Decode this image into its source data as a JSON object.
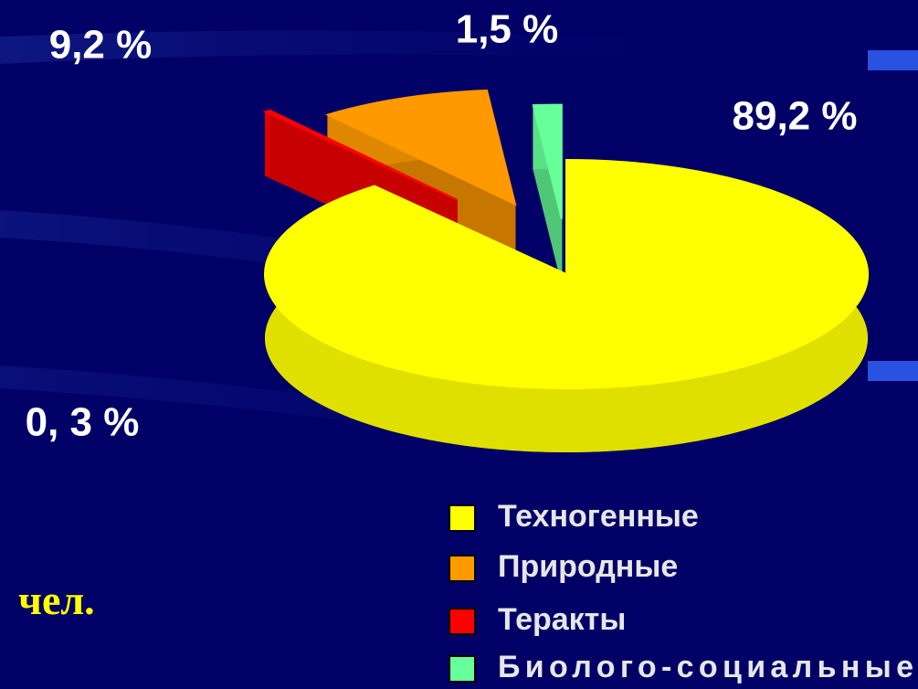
{
  "chart_data": {
    "type": "pie",
    "categories": [
      "Техногенные",
      "Природные",
      "Теракты",
      "Биолого-социальные"
    ],
    "values": [
      89.2,
      9.2,
      0.3,
      1.5
    ],
    "value_labels": [
      "89,2 %",
      "9,2 %",
      "0, 3 %",
      "1,5 %"
    ],
    "colors": [
      "#ffff00",
      "#ff9900",
      "#ff0000",
      "#66ff99"
    ],
    "annotation": "чел.",
    "legend": true
  }
}
